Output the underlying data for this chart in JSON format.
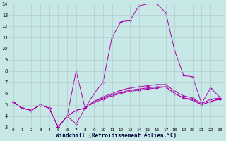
{
  "xlabel": "Windchill (Refroidissement éolien,°C)",
  "background_color": "#c8e8e8",
  "grid_color": "#b0cece",
  "line_color": "#aa00aa",
  "xlim_min": -0.5,
  "xlim_max": 23.5,
  "ylim_min": 3,
  "ylim_max": 14,
  "yticks": [
    3,
    4,
    5,
    6,
    7,
    8,
    9,
    10,
    11,
    12,
    13,
    14
  ],
  "xticks": [
    0,
    1,
    2,
    3,
    4,
    5,
    6,
    7,
    8,
    9,
    10,
    11,
    12,
    13,
    14,
    15,
    16,
    17,
    18,
    19,
    20,
    21,
    22,
    23
  ],
  "series": [
    [
      5.2,
      4.7,
      4.5,
      5.0,
      4.7,
      3.0,
      4.0,
      3.3,
      4.7,
      6.0,
      7.0,
      11.0,
      12.4,
      12.5,
      13.8,
      14.0,
      14.0,
      13.2,
      9.8,
      7.6,
      7.5,
      5.1,
      6.5,
      5.7
    ],
    [
      5.2,
      4.7,
      4.5,
      5.0,
      4.7,
      3.0,
      4.0,
      8.0,
      4.7,
      5.2,
      5.5,
      5.8,
      6.0,
      6.2,
      6.3,
      6.4,
      6.5,
      6.6,
      6.0,
      5.6,
      5.5,
      5.0,
      5.3,
      5.5
    ],
    [
      5.2,
      4.7,
      4.5,
      5.0,
      4.7,
      3.0,
      4.0,
      4.5,
      4.7,
      5.3,
      5.7,
      6.0,
      6.3,
      6.5,
      6.6,
      6.7,
      6.8,
      6.8,
      6.2,
      5.8,
      5.6,
      5.1,
      5.5,
      5.6
    ],
    [
      5.2,
      4.7,
      4.5,
      5.0,
      4.7,
      3.0,
      4.0,
      4.5,
      4.7,
      5.3,
      5.6,
      5.9,
      6.1,
      6.3,
      6.4,
      6.5,
      6.6,
      6.6,
      6.0,
      5.6,
      5.4,
      5.0,
      5.3,
      5.5
    ]
  ]
}
